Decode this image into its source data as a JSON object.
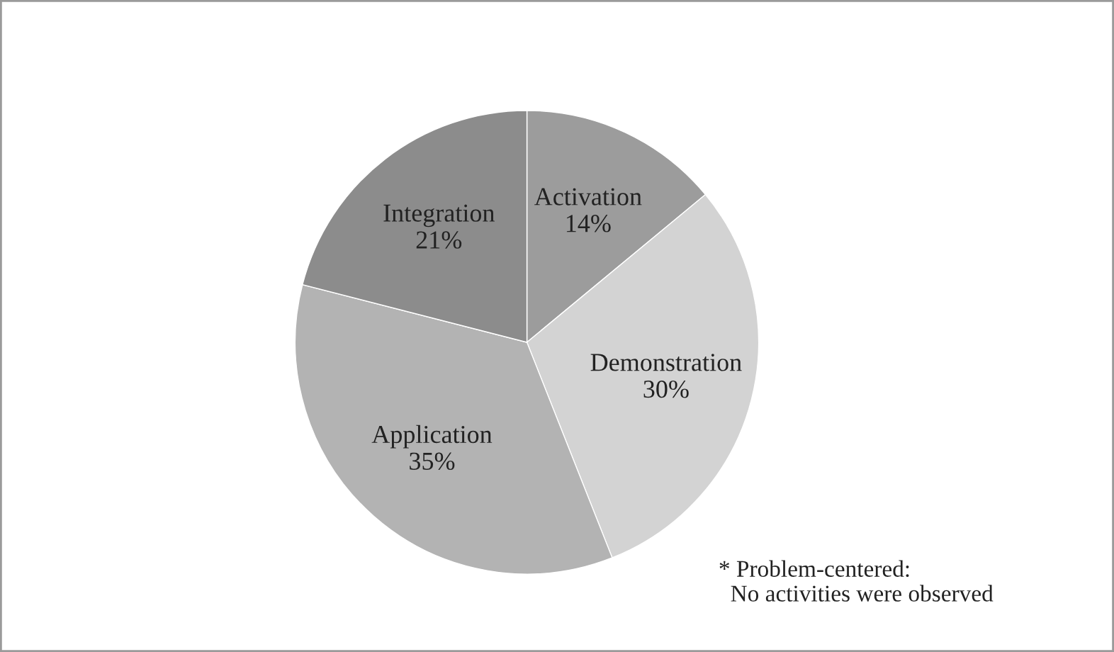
{
  "chart_data": {
    "type": "pie",
    "categories": [
      "Activation",
      "Demonstration",
      "Application",
      "Integration"
    ],
    "values": [
      14,
      30,
      35,
      21
    ],
    "colors": [
      "#9c9c9c",
      "#d3d3d3",
      "#b3b3b3",
      "#8c8c8c"
    ],
    "value_labels": [
      "14%",
      "30%",
      "35%",
      "21%"
    ],
    "annotations": [
      "* Problem-centered:\n  No activities were observed"
    ]
  }
}
